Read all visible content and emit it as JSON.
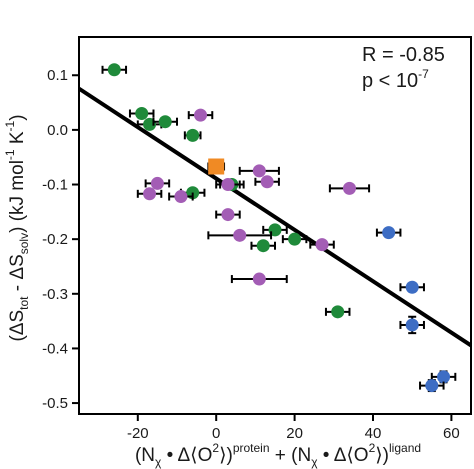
{
  "chart_data": {
    "type": "scatter",
    "xlim": [
      -35,
      65
    ],
    "ylim": [
      -0.52,
      0.17
    ],
    "x_ticks": [
      -20,
      0,
      20,
      40,
      60
    ],
    "y_ticks": [
      0.1,
      0.0,
      -0.1,
      -0.2,
      -0.3,
      -0.4,
      -0.5
    ],
    "x_tick_labels": [
      "-20",
      "0",
      "20",
      "40",
      "60"
    ],
    "y_tick_labels": [
      "0.1",
      "0.0",
      "-0.1",
      "-0.2",
      "-0.3",
      "-0.4",
      "-0.5"
    ],
    "grid": false,
    "xlabel": {
      "p1": "(N",
      "p2": "χ",
      "p3": " • Δ⟨O",
      "p4": "2",
      "p5": "⟩)",
      "p6": "protein",
      "p7": " + (N",
      "p8": "χ",
      "p9": " • Δ⟨O",
      "p10": "2",
      "p11": "⟩)",
      "p12": "ligand"
    },
    "ylabel": {
      "p1": "(ΔS",
      "p2": "tot",
      "p3": " - ΔS",
      "p4": "solv",
      "p5": ") (kJ mol",
      "p6": "-1",
      "p7": " K",
      "p8": "-1",
      "p9": ")"
    },
    "annotation": {
      "r_text": "R = -0.85",
      "p_base": "p < 10",
      "p_exp": "-7"
    },
    "fit_line": {
      "slope": -0.0047,
      "intercept": -0.089
    },
    "colors": {
      "green": "#1f8a3a",
      "purple": "#a35db5",
      "blue": "#3d6dc4",
      "orange": "#f08a24",
      "line": "#000000",
      "errorbar": "#000000"
    },
    "series": [
      {
        "color_key": "green",
        "points": [
          {
            "x": -26,
            "y": 0.11,
            "xerr": 3
          },
          {
            "x": -19,
            "y": 0.03,
            "xerr": 3
          },
          {
            "x": -17,
            "y": 0.01,
            "xerr": 3
          },
          {
            "x": -13,
            "y": 0.015,
            "xerr": 3
          },
          {
            "x": -6,
            "y": -0.01,
            "xerr": 2
          },
          {
            "x": -6,
            "y": -0.115,
            "xerr": 3
          },
          {
            "x": 4,
            "y": -0.1,
            "xerr": 3
          },
          {
            "x": 15,
            "y": -0.183,
            "xerr": 3
          },
          {
            "x": 12,
            "y": -0.212,
            "xerr": 3
          },
          {
            "x": 20,
            "y": -0.2,
            "xerr": 3
          },
          {
            "x": 31,
            "y": -0.333,
            "xerr": 3
          }
        ]
      },
      {
        "color_key": "purple",
        "points": [
          {
            "x": -4,
            "y": 0.027,
            "xerr": 3
          },
          {
            "x": -15,
            "y": -0.098,
            "xerr": 3
          },
          {
            "x": -17,
            "y": -0.117,
            "xerr": 3
          },
          {
            "x": -9,
            "y": -0.122,
            "xerr": 3
          },
          {
            "x": 3,
            "y": -0.1,
            "xerr": 3
          },
          {
            "x": 11,
            "y": -0.075,
            "xerr": 5
          },
          {
            "x": 13,
            "y": -0.095,
            "xerr": 3
          },
          {
            "x": 34,
            "y": -0.107,
            "xerr": 5
          },
          {
            "x": 3,
            "y": -0.155,
            "xerr": 3
          },
          {
            "x": 6,
            "y": -0.193,
            "xerr": 8
          },
          {
            "x": 27,
            "y": -0.21,
            "xerr": 3
          },
          {
            "x": 11,
            "y": -0.273,
            "xerr": 7
          }
        ]
      },
      {
        "color_key": "blue",
        "points": [
          {
            "x": 44,
            "y": -0.188,
            "xerr": 3
          },
          {
            "x": 50,
            "y": -0.288,
            "xerr": 3
          },
          {
            "x": 50,
            "y": -0.357,
            "xerr": 3,
            "yerr": 0.015
          },
          {
            "x": 58,
            "y": -0.452,
            "xerr": 3,
            "yerr": 0.01
          },
          {
            "x": 55,
            "y": -0.468,
            "xerr": 3,
            "yerr": 0.01
          }
        ]
      },
      {
        "color_key": "orange",
        "marker": "square",
        "points": [
          {
            "x": 0,
            "y": -0.067,
            "xerr": 2,
            "yerr": 0.01
          }
        ]
      }
    ]
  }
}
